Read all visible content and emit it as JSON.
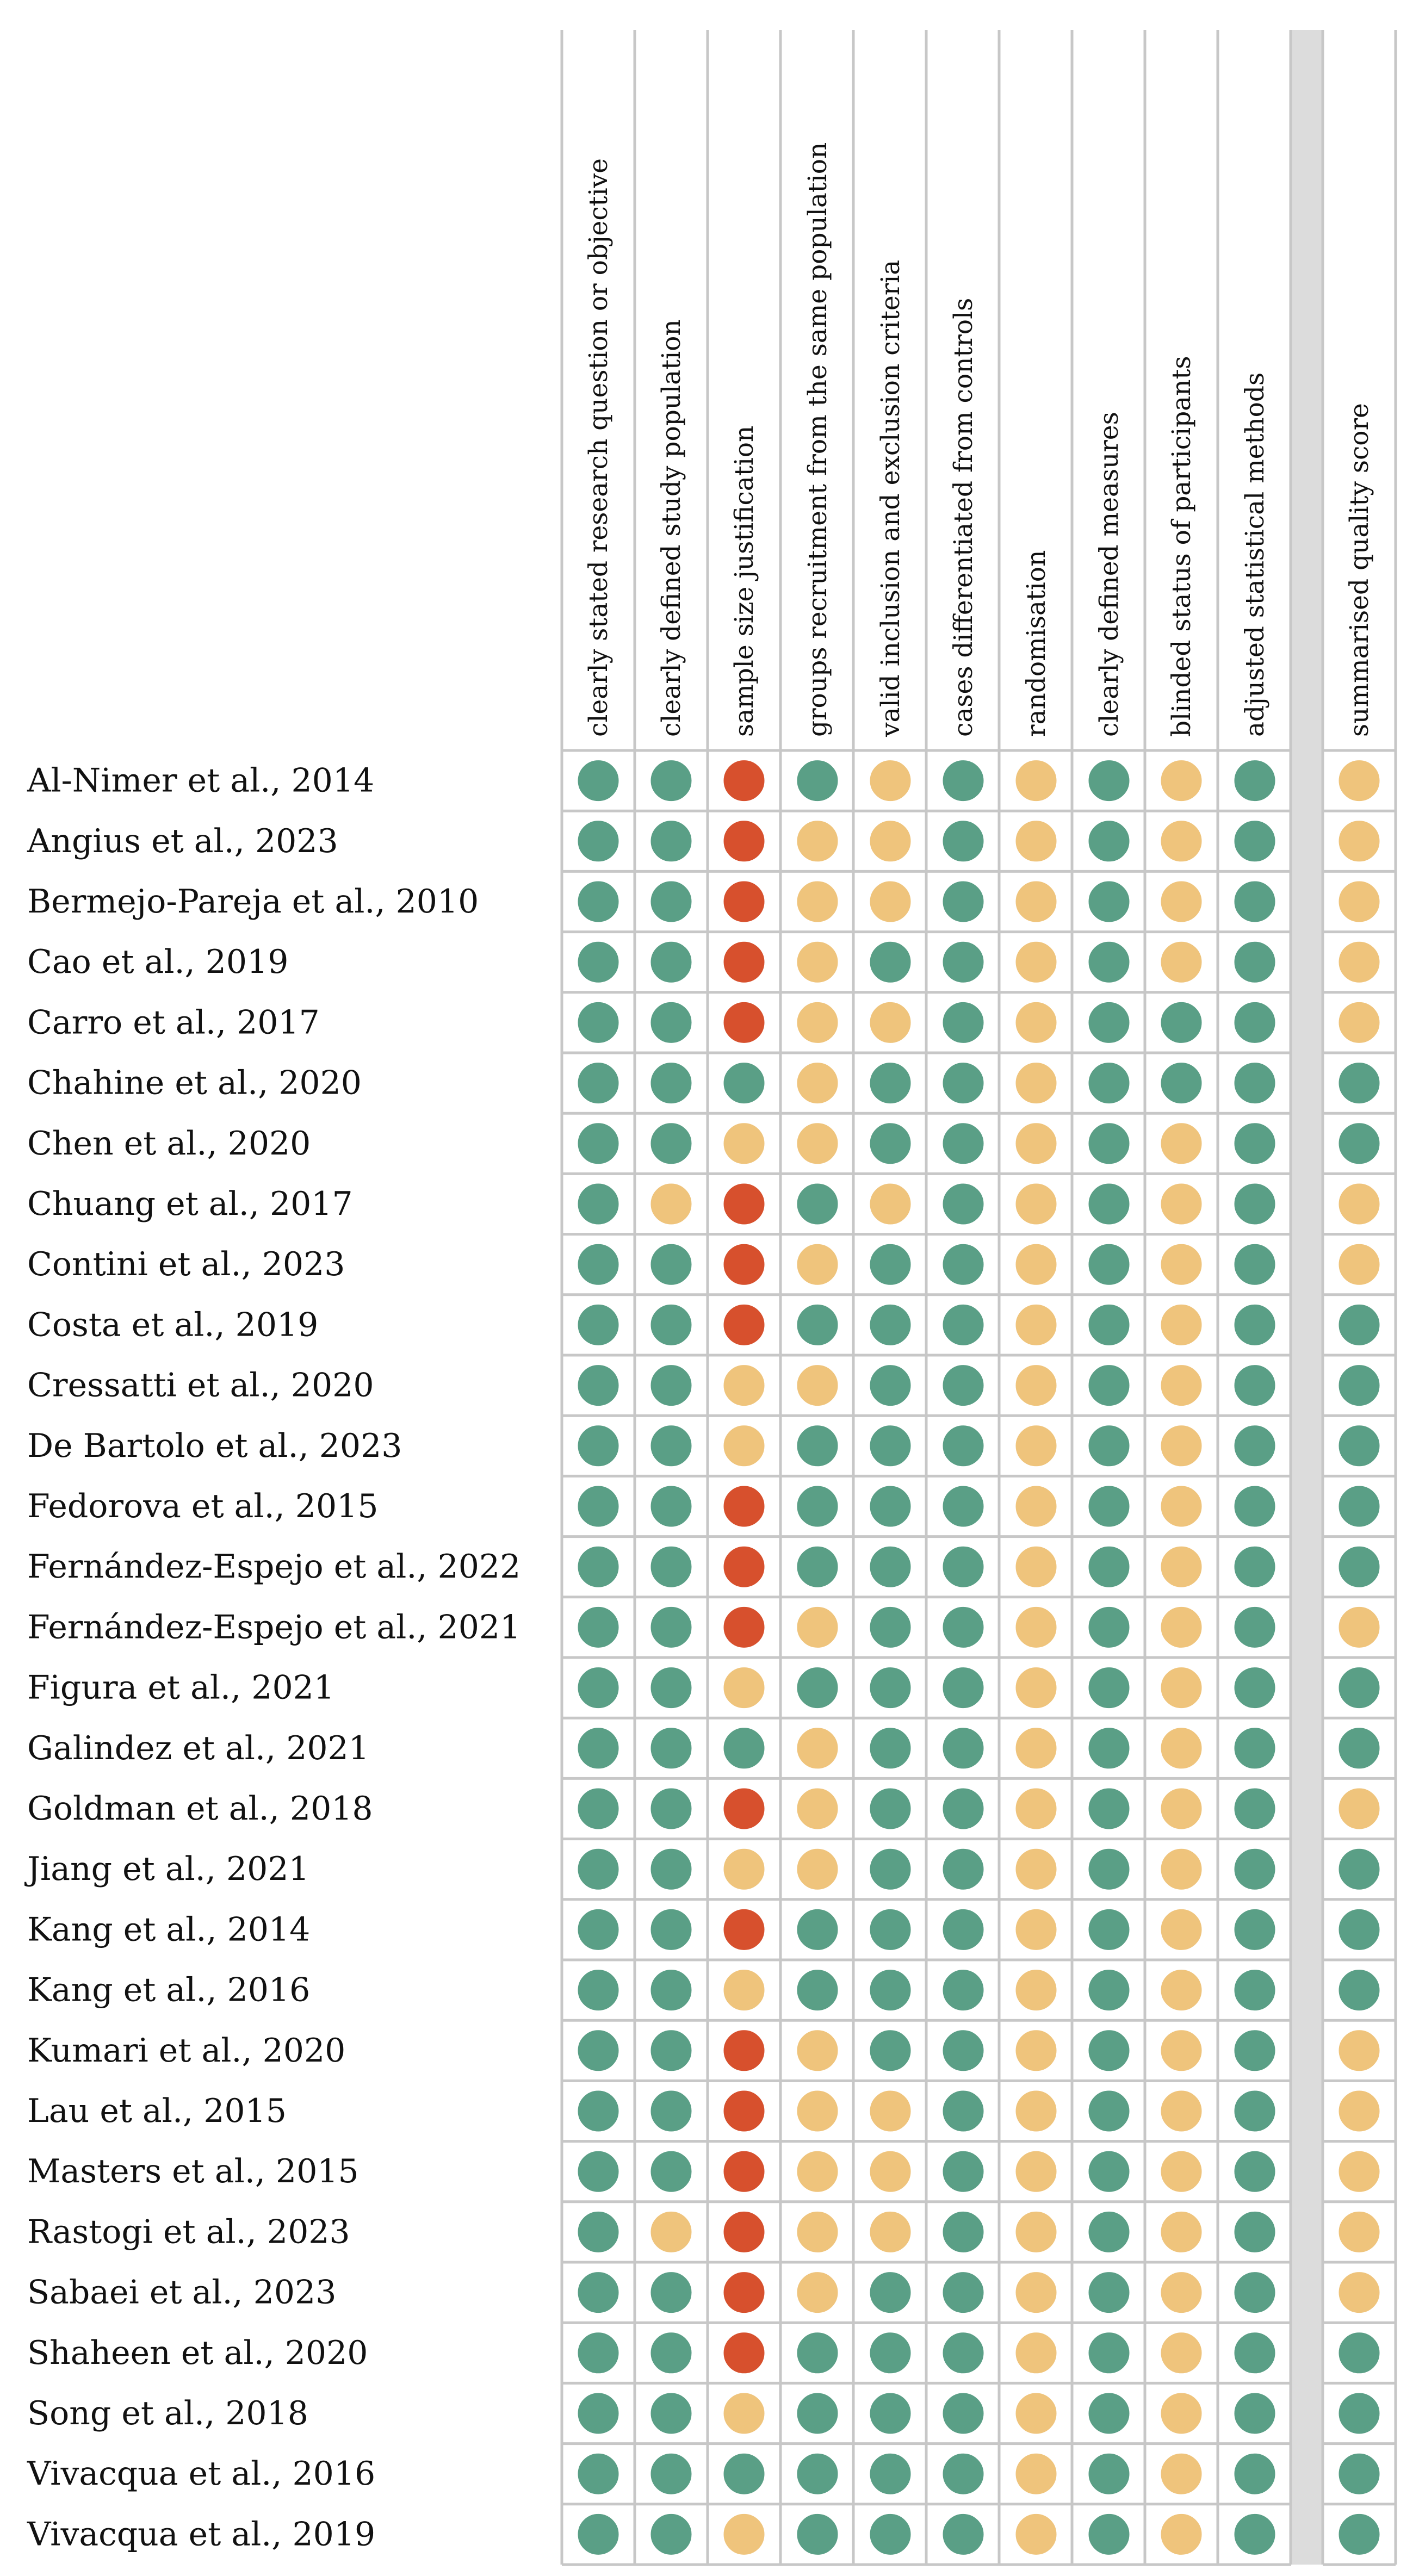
{
  "legend_values": {
    "green": "#5a9f86",
    "yellow": "#efc47c",
    "red": "#d7502d",
    "grid": "#c7c7c7",
    "separator": "#dcdcdc"
  },
  "chart_data": {
    "type": "table",
    "title": "",
    "columns": [
      "clearly stated research question or objective",
      "clearly defined study population",
      "sample size justification",
      "groups recruitment from the same population",
      "valid inclusion and exclusion criteria",
      "cases differentiated from controls",
      "randomisation",
      "clearly defined measures",
      "blinded status of participants",
      "adjusted statistical methods"
    ],
    "summary_column": "summarised quality score",
    "rows": [
      {
        "study": "Al-Nimer et al., 2014",
        "ratings": [
          "green",
          "green",
          "red",
          "green",
          "yellow",
          "green",
          "yellow",
          "green",
          "yellow",
          "green"
        ],
        "summary": "yellow"
      },
      {
        "study": "Angius et al., 2023",
        "ratings": [
          "green",
          "green",
          "red",
          "yellow",
          "yellow",
          "green",
          "yellow",
          "green",
          "yellow",
          "green"
        ],
        "summary": "yellow"
      },
      {
        "study": "Bermejo-Pareja et al., 2010",
        "ratings": [
          "green",
          "green",
          "red",
          "yellow",
          "yellow",
          "green",
          "yellow",
          "green",
          "yellow",
          "green"
        ],
        "summary": "yellow"
      },
      {
        "study": "Cao et al., 2019",
        "ratings": [
          "green",
          "green",
          "red",
          "yellow",
          "green",
          "green",
          "yellow",
          "green",
          "yellow",
          "green"
        ],
        "summary": "yellow"
      },
      {
        "study": "Carro et al., 2017",
        "ratings": [
          "green",
          "green",
          "red",
          "yellow",
          "yellow",
          "green",
          "yellow",
          "green",
          "green",
          "green"
        ],
        "summary": "yellow"
      },
      {
        "study": "Chahine et al., 2020",
        "ratings": [
          "green",
          "green",
          "green",
          "yellow",
          "green",
          "green",
          "yellow",
          "green",
          "green",
          "green"
        ],
        "summary": "green"
      },
      {
        "study": "Chen et al., 2020",
        "ratings": [
          "green",
          "green",
          "yellow",
          "yellow",
          "green",
          "green",
          "yellow",
          "green",
          "yellow",
          "green"
        ],
        "summary": "green"
      },
      {
        "study": "Chuang et al., 2017",
        "ratings": [
          "green",
          "yellow",
          "red",
          "green",
          "yellow",
          "green",
          "yellow",
          "green",
          "yellow",
          "green"
        ],
        "summary": "yellow"
      },
      {
        "study": "Contini et al., 2023",
        "ratings": [
          "green",
          "green",
          "red",
          "yellow",
          "green",
          "green",
          "yellow",
          "green",
          "yellow",
          "green"
        ],
        "summary": "yellow"
      },
      {
        "study": "Costa et al., 2019",
        "ratings": [
          "green",
          "green",
          "red",
          "green",
          "green",
          "green",
          "yellow",
          "green",
          "yellow",
          "green"
        ],
        "summary": "green"
      },
      {
        "study": "Cressatti et al., 2020",
        "ratings": [
          "green",
          "green",
          "yellow",
          "yellow",
          "green",
          "green",
          "yellow",
          "green",
          "yellow",
          "green"
        ],
        "summary": "green"
      },
      {
        "study": "De Bartolo et al., 2023",
        "ratings": [
          "green",
          "green",
          "yellow",
          "green",
          "green",
          "green",
          "yellow",
          "green",
          "yellow",
          "green"
        ],
        "summary": "green"
      },
      {
        "study": "Fedorova et al., 2015",
        "ratings": [
          "green",
          "green",
          "red",
          "green",
          "green",
          "green",
          "yellow",
          "green",
          "yellow",
          "green"
        ],
        "summary": "green"
      },
      {
        "study": "Fernández-Espejo et al., 2022",
        "ratings": [
          "green",
          "green",
          "red",
          "green",
          "green",
          "green",
          "yellow",
          "green",
          "yellow",
          "green"
        ],
        "summary": "green"
      },
      {
        "study": "Fernández-Espejo et al., 2021",
        "ratings": [
          "green",
          "green",
          "red",
          "yellow",
          "green",
          "green",
          "yellow",
          "green",
          "yellow",
          "green"
        ],
        "summary": "yellow"
      },
      {
        "study": "Figura et al., 2021",
        "ratings": [
          "green",
          "green",
          "yellow",
          "green",
          "green",
          "green",
          "yellow",
          "green",
          "yellow",
          "green"
        ],
        "summary": "green"
      },
      {
        "study": "Galindez et al., 2021",
        "ratings": [
          "green",
          "green",
          "green",
          "yellow",
          "green",
          "green",
          "yellow",
          "green",
          "yellow",
          "green"
        ],
        "summary": "green"
      },
      {
        "study": "Goldman et al., 2018",
        "ratings": [
          "green",
          "green",
          "red",
          "yellow",
          "green",
          "green",
          "yellow",
          "green",
          "yellow",
          "green"
        ],
        "summary": "yellow"
      },
      {
        "study": "Jiang et al., 2021",
        "ratings": [
          "green",
          "green",
          "yellow",
          "yellow",
          "green",
          "green",
          "yellow",
          "green",
          "yellow",
          "green"
        ],
        "summary": "green"
      },
      {
        "study": "Kang et al., 2014",
        "ratings": [
          "green",
          "green",
          "red",
          "green",
          "green",
          "green",
          "yellow",
          "green",
          "yellow",
          "green"
        ],
        "summary": "green"
      },
      {
        "study": "Kang et al., 2016",
        "ratings": [
          "green",
          "green",
          "yellow",
          "green",
          "green",
          "green",
          "yellow",
          "green",
          "yellow",
          "green"
        ],
        "summary": "green"
      },
      {
        "study": "Kumari et al., 2020",
        "ratings": [
          "green",
          "green",
          "red",
          "yellow",
          "green",
          "green",
          "yellow",
          "green",
          "yellow",
          "green"
        ],
        "summary": "yellow"
      },
      {
        "study": "Lau et al., 2015",
        "ratings": [
          "green",
          "green",
          "red",
          "yellow",
          "yellow",
          "green",
          "yellow",
          "green",
          "yellow",
          "green"
        ],
        "summary": "yellow"
      },
      {
        "study": "Masters et al., 2015",
        "ratings": [
          "green",
          "green",
          "red",
          "yellow",
          "yellow",
          "green",
          "yellow",
          "green",
          "yellow",
          "green"
        ],
        "summary": "yellow"
      },
      {
        "study": "Rastogi et al., 2023",
        "ratings": [
          "green",
          "yellow",
          "red",
          "yellow",
          "yellow",
          "green",
          "yellow",
          "green",
          "yellow",
          "green"
        ],
        "summary": "yellow"
      },
      {
        "study": "Sabaei et al., 2023",
        "ratings": [
          "green",
          "green",
          "red",
          "yellow",
          "green",
          "green",
          "yellow",
          "green",
          "yellow",
          "green"
        ],
        "summary": "yellow"
      },
      {
        "study": "Shaheen et al., 2020",
        "ratings": [
          "green",
          "green",
          "red",
          "green",
          "green",
          "green",
          "yellow",
          "green",
          "yellow",
          "green"
        ],
        "summary": "green"
      },
      {
        "study": "Song et al., 2018",
        "ratings": [
          "green",
          "green",
          "yellow",
          "green",
          "green",
          "green",
          "yellow",
          "green",
          "yellow",
          "green"
        ],
        "summary": "green"
      },
      {
        "study": "Vivacqua et al., 2016",
        "ratings": [
          "green",
          "green",
          "green",
          "green",
          "green",
          "green",
          "yellow",
          "green",
          "yellow",
          "green"
        ],
        "summary": "green"
      },
      {
        "study": "Vivacqua et al., 2019",
        "ratings": [
          "green",
          "green",
          "yellow",
          "green",
          "green",
          "green",
          "yellow",
          "green",
          "yellow",
          "green"
        ],
        "summary": "green"
      }
    ]
  }
}
